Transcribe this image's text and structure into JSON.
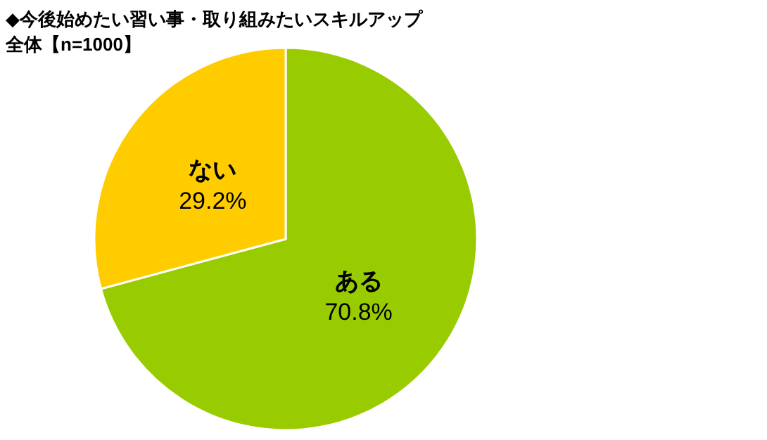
{
  "chart_data": {
    "type": "pie",
    "title": "◆今後始めたい習い事・取り組みたいスキルアップ",
    "subtitle": "全体【n=1000】",
    "categories": [
      "ある",
      "ない"
    ],
    "values": [
      70.8,
      29.2
    ],
    "colors": [
      "#99cc00",
      "#ffcc00"
    ],
    "value_labels": [
      "70.8%",
      "29.2%"
    ],
    "legend": false
  }
}
